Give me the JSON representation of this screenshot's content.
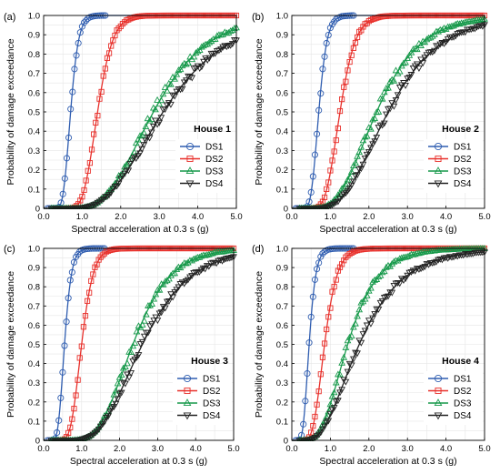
{
  "chart_data": [
    {
      "panel": "(a)",
      "title": "House 1",
      "type": "scatter",
      "xlabel": "Spectral acceleration at 0.3 s (g)",
      "ylabel": "Probability of damage exceedance",
      "xlim": [
        0,
        5
      ],
      "ylim": [
        0,
        1
      ],
      "xticks": [
        "0.0",
        "1.0",
        "2.0",
        "3.0",
        "4.0",
        "5.0"
      ],
      "yticks": [
        "0",
        "0.1",
        "0.2",
        "0.3",
        "0.4",
        "0.5",
        "0.6",
        "0.7",
        "0.8",
        "0.9",
        "1.0"
      ],
      "grid": true,
      "legend_position": "bottom-right",
      "series": [
        {
          "name": "DS1",
          "color": "#2f5db0",
          "marker": "circle",
          "fit_median": 0.7,
          "fit_beta": 0.23,
          "points_range": [
            0.1,
            1.6
          ]
        },
        {
          "name": "DS2",
          "color": "#e8302b",
          "marker": "square",
          "fit_median": 1.4,
          "fit_beta": 0.22,
          "points_range": [
            0.6,
            5.0
          ]
        },
        {
          "name": "DS3",
          "color": "#16994a",
          "marker": "triangle-up",
          "fit_median": 2.85,
          "fit_beta": 0.38,
          "points_range": [
            0.2,
            5.0
          ]
        },
        {
          "name": "DS4",
          "color": "#222222",
          "marker": "triangle-down",
          "fit_median": 3.1,
          "fit_beta": 0.42,
          "points_range": [
            0.2,
            5.0
          ]
        }
      ]
    },
    {
      "panel": "(b)",
      "title": "House 2",
      "type": "scatter",
      "xlabel": "Spectral acceleration at 0.3 s (g)",
      "ylabel": "Probability of damage exceedance",
      "xlim": [
        0,
        5
      ],
      "ylim": [
        0,
        1
      ],
      "xticks": [
        "0.0",
        "1.0",
        "2.0",
        "3.0",
        "4.0",
        "5.0"
      ],
      "yticks": [
        "0",
        "0.1",
        "0.2",
        "0.3",
        "0.4",
        "0.5",
        "0.6",
        "0.7",
        "0.8",
        "0.9",
        "1.0"
      ],
      "grid": true,
      "legend_position": "bottom-right",
      "series": [
        {
          "name": "DS1",
          "color": "#2f5db0",
          "marker": "circle",
          "fit_median": 0.7,
          "fit_beta": 0.24,
          "points_range": [
            0.1,
            1.6
          ]
        },
        {
          "name": "DS2",
          "color": "#e8302b",
          "marker": "square",
          "fit_median": 1.25,
          "fit_beta": 0.25,
          "points_range": [
            0.5,
            5.0
          ]
        },
        {
          "name": "DS3",
          "color": "#16994a",
          "marker": "triangle-up",
          "fit_median": 2.2,
          "fit_beta": 0.4,
          "points_range": [
            0.2,
            5.0
          ]
        },
        {
          "name": "DS4",
          "color": "#222222",
          "marker": "triangle-down",
          "fit_median": 2.5,
          "fit_beta": 0.42,
          "points_range": [
            0.2,
            5.0
          ]
        }
      ]
    },
    {
      "panel": "(c)",
      "title": "House 3",
      "type": "scatter",
      "xlabel": "Spectral acceleration at 0.3 s (g)",
      "ylabel": "Probability of damage exceedance",
      "xlim": [
        0,
        5
      ],
      "ylim": [
        0,
        1
      ],
      "xticks": [
        "0.0",
        "1.0",
        "2.0",
        "3.0",
        "4.0",
        "5.0"
      ],
      "yticks": [
        "0",
        "0.1",
        "0.2",
        "0.3",
        "0.4",
        "0.5",
        "0.6",
        "0.7",
        "0.8",
        "0.9",
        "1.0"
      ],
      "grid": true,
      "legend_position": "bottom-right",
      "series": [
        {
          "name": "DS1",
          "color": "#2f5db0",
          "marker": "circle",
          "fit_median": 0.55,
          "fit_beta": 0.26,
          "points_range": [
            0.1,
            1.6
          ]
        },
        {
          "name": "DS2",
          "color": "#e8302b",
          "marker": "square",
          "fit_median": 1.0,
          "fit_beta": 0.24,
          "points_range": [
            0.4,
            5.0
          ]
        },
        {
          "name": "DS3",
          "color": "#16994a",
          "marker": "triangle-up",
          "fit_median": 2.35,
          "fit_beta": 0.33,
          "points_range": [
            0.2,
            5.0
          ]
        },
        {
          "name": "DS4",
          "color": "#222222",
          "marker": "triangle-down",
          "fit_median": 2.6,
          "fit_beta": 0.38,
          "points_range": [
            0.2,
            5.0
          ]
        }
      ]
    },
    {
      "panel": "(d)",
      "title": "House 4",
      "type": "scatter",
      "xlabel": "Spectral acceleration at 0.3 s (g)",
      "ylabel": "Probability of damage exceedance",
      "xlim": [
        0,
        5
      ],
      "ylim": [
        0,
        1
      ],
      "xticks": [
        "0.0",
        "1.0",
        "2.0",
        "3.0",
        "4.0",
        "5.0"
      ],
      "yticks": [
        "0",
        "0.1",
        "0.2",
        "0.3",
        "0.4",
        "0.5",
        "0.6",
        "0.7",
        "0.8",
        "0.9",
        "1.0"
      ],
      "grid": true,
      "legend_position": "bottom-right",
      "series": [
        {
          "name": "DS1",
          "color": "#2f5db0",
          "marker": "circle",
          "fit_median": 0.45,
          "fit_beta": 0.3,
          "points_range": [
            0.1,
            1.6
          ]
        },
        {
          "name": "DS2",
          "color": "#e8302b",
          "marker": "square",
          "fit_median": 0.85,
          "fit_beta": 0.3,
          "points_range": [
            0.3,
            5.0
          ]
        },
        {
          "name": "DS3",
          "color": "#16994a",
          "marker": "triangle-up",
          "fit_median": 1.45,
          "fit_beta": 0.42,
          "points_range": [
            0.2,
            5.0
          ]
        },
        {
          "name": "DS4",
          "color": "#222222",
          "marker": "triangle-down",
          "fit_median": 1.75,
          "fit_beta": 0.5,
          "points_range": [
            0.2,
            5.0
          ]
        }
      ]
    }
  ]
}
